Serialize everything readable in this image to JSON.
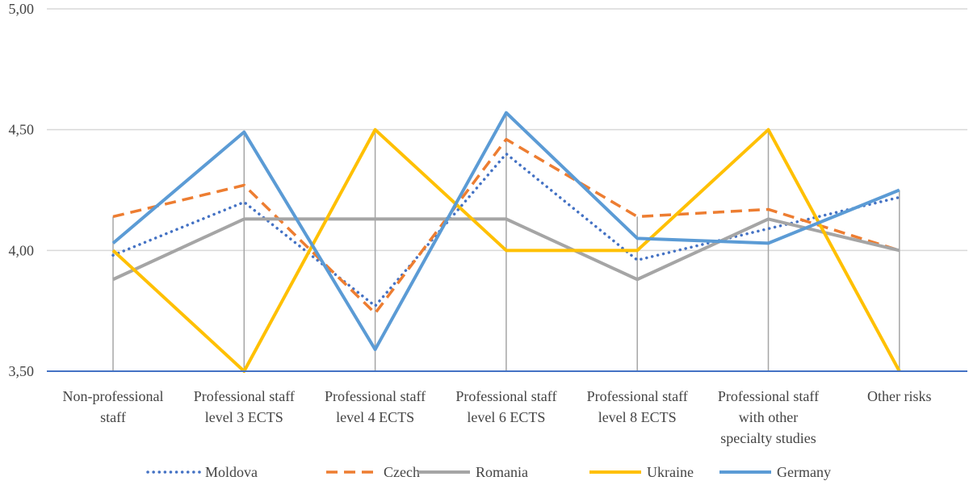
{
  "chart_data": {
    "type": "line",
    "title": "",
    "xlabel": "",
    "ylabel": "",
    "ylim": [
      3.5,
      5.0
    ],
    "yticks": [
      3.5,
      4.0,
      4.5,
      5.0
    ],
    "ytick_labels": [
      "3,50",
      "4,00",
      "4,50",
      "5,00"
    ],
    "grid": true,
    "legend_position": "bottom",
    "categories": [
      [
        "Non-professional",
        "staff"
      ],
      [
        "Professional staff",
        "level 3 ECTS"
      ],
      [
        "Professional staff",
        "level 4 ECTS"
      ],
      [
        "Professional staff",
        "level 6 ECTS"
      ],
      [
        "Professional staff",
        "level 8 ECTS"
      ],
      [
        "Professional staff",
        "with other",
        "specialty studies"
      ],
      [
        "Other risks"
      ]
    ],
    "series": [
      {
        "name": "Moldova",
        "color": "#4472C4",
        "style": "dotted",
        "values": [
          3.98,
          4.2,
          3.77,
          4.4,
          3.96,
          4.09,
          4.22
        ]
      },
      {
        "name": "Czech",
        "color": "#ED7D31",
        "style": "dashed",
        "values": [
          4.14,
          4.27,
          3.74,
          4.46,
          4.14,
          4.17,
          4.0
        ]
      },
      {
        "name": "Romania",
        "color": "#A5A5A5",
        "style": "solid",
        "values": [
          3.88,
          4.13,
          4.13,
          4.13,
          3.88,
          4.13,
          4.0
        ]
      },
      {
        "name": "Ukraine",
        "color": "#FFC000",
        "style": "solid",
        "values": [
          4.0,
          3.5,
          4.5,
          4.0,
          4.0,
          4.5,
          3.5
        ]
      },
      {
        "name": "Germany",
        "color": "#5B9BD5",
        "style": "solid",
        "values": [
          4.03,
          4.49,
          3.59,
          4.57,
          4.05,
          4.03,
          4.25
        ]
      }
    ]
  }
}
